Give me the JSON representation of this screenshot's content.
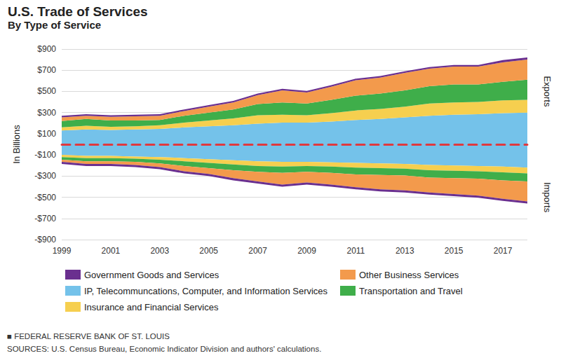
{
  "chart_data": {
    "type": "area",
    "title": "U.S. Trade of Services",
    "subtitle": "By Type of Service",
    "y_label": "In Billions",
    "categories": [
      "1999",
      null,
      "2001",
      null,
      "2003",
      null,
      "2005",
      null,
      "2007",
      null,
      "2009",
      null,
      "2011",
      null,
      "2013",
      null,
      "2015",
      null,
      "2017",
      null
    ],
    "series": [
      {
        "name": "IP, Telecommuncations, Computer, and Information Services",
        "color": "#74c2ea",
        "values": [
          130,
          140,
          135,
          140,
          145,
          160,
          170,
          180,
          195,
          205,
          205,
          215,
          230,
          240,
          255,
          270,
          280,
          285,
          295,
          300
        ]
      },
      {
        "name": "Insurance and Financial Services",
        "color": "#f6cf4f",
        "values": [
          30,
          35,
          30,
          30,
          35,
          45,
          55,
          65,
          80,
          75,
          70,
          80,
          90,
          95,
          100,
          115,
          115,
          115,
          120,
          120
        ]
      },
      {
        "name": "Transportation and Travel",
        "color": "#3fae4a",
        "values": [
          60,
          65,
          60,
          55,
          50,
          65,
          75,
          85,
          105,
          115,
          110,
          125,
          140,
          145,
          155,
          165,
          170,
          165,
          175,
          190
        ]
      },
      {
        "name": "Other Business Services",
        "color": "#f39a4c",
        "values": [
          35,
          30,
          35,
          40,
          40,
          45,
          55,
          65,
          85,
          115,
          105,
          125,
          145,
          150,
          165,
          165,
          170,
          170,
          185,
          190
        ]
      },
      {
        "name": "Government Goods and Services",
        "color": "#6a2f8f",
        "values": [
          15,
          15,
          15,
          15,
          15,
          15,
          15,
          15,
          15,
          15,
          15,
          15,
          15,
          15,
          15,
          15,
          15,
          15,
          20,
          20
        ]
      },
      {
        "name": "IP, Telecommuncations, Computer, and Information Services",
        "color": "#74c2ea",
        "values": [
          -100,
          -110,
          -110,
          -115,
          -120,
          -130,
          -140,
          -150,
          -160,
          -165,
          -165,
          -170,
          -175,
          -180,
          -185,
          -195,
          -200,
          -205,
          -210,
          -220
        ]
      },
      {
        "name": "Insurance and Financial Services",
        "color": "#f6cf4f",
        "values": [
          -20,
          -20,
          -20,
          -20,
          -25,
          -30,
          -35,
          -40,
          -45,
          -45,
          -40,
          -40,
          -45,
          -45,
          -45,
          -50,
          -50,
          -50,
          -55,
          -55
        ]
      },
      {
        "name": "Transportation and Travel",
        "color": "#3fae4a",
        "values": [
          -25,
          -30,
          -30,
          -30,
          -35,
          -45,
          -50,
          -55,
          -55,
          -60,
          -55,
          -60,
          -65,
          -65,
          -65,
          -70,
          -70,
          -70,
          -75,
          -75
        ]
      },
      {
        "name": "Other Business Services",
        "color": "#f39a4c",
        "values": [
          -20,
          -25,
          -25,
          -30,
          -35,
          -50,
          -55,
          -75,
          -90,
          -110,
          -100,
          -110,
          -120,
          -135,
          -140,
          -140,
          -150,
          -160,
          -175,
          -190
        ]
      },
      {
        "name": "Government Goods and Services",
        "color": "#6a2f8f",
        "values": [
          -20,
          -20,
          -20,
          -20,
          -20,
          -20,
          -20,
          -20,
          -20,
          -20,
          -20,
          -20,
          -20,
          -20,
          -20,
          -20,
          -20,
          -20,
          -20,
          -20
        ]
      }
    ],
    "ylim": [
      -900,
      900
    ],
    "yticks": [
      {
        "value": -900,
        "label": "-$900"
      },
      {
        "value": -700,
        "label": "-$700"
      },
      {
        "value": -500,
        "label": "-$500"
      },
      {
        "value": -300,
        "label": "-$300"
      },
      {
        "value": -100,
        "label": "-$100"
      },
      {
        "value": 100,
        "label": "$100"
      },
      {
        "value": 300,
        "label": "$300"
      },
      {
        "value": 500,
        "label": "$500"
      },
      {
        "value": 700,
        "label": "$700"
      },
      {
        "value": 900,
        "label": "$900"
      }
    ],
    "annotations": [
      {
        "text": "Exports",
        "y": 500
      },
      {
        "text": "Imports",
        "y": -500
      }
    ],
    "notes": [
      "■ FEDERAL RESERVE BANK OF ST. LOUIS",
      "SOURCES: U.S. Census Bureau, Economic Indicator Division and authors' calculations."
    ],
    "stacked": true,
    "grid": true,
    "legend": "bottom"
  }
}
